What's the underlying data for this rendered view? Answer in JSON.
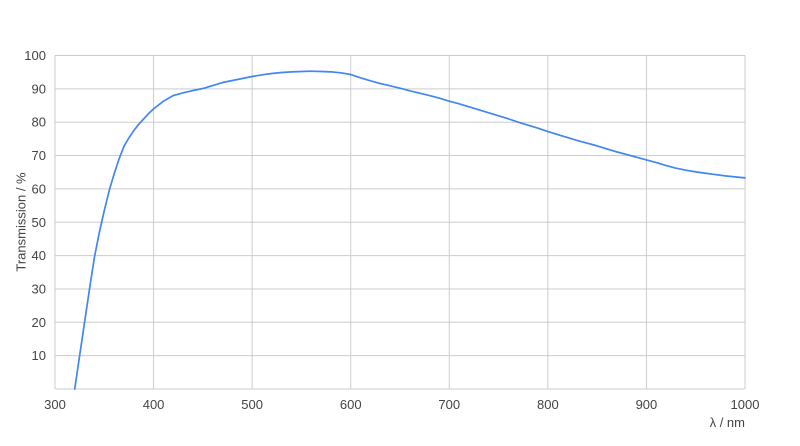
{
  "chart_data": {
    "type": "line",
    "title": "",
    "xlabel": "λ / nm",
    "ylabel": "Transmission / %",
    "xlim": [
      300,
      1000
    ],
    "ylim": [
      0,
      100
    ],
    "xticks": [
      300,
      400,
      500,
      600,
      700,
      800,
      900,
      1000
    ],
    "yticks": [
      10,
      20,
      30,
      40,
      50,
      60,
      70,
      80,
      90,
      100
    ],
    "grid": true,
    "legend": "none",
    "colors": {
      "line": "#4285f4",
      "grid": "#cccccc",
      "label": "#444444",
      "background": "#ffffff"
    },
    "series": [
      {
        "name": "Transmission",
        "x": [
          320,
          325,
          330,
          335,
          340,
          345,
          350,
          355,
          360,
          365,
          370,
          375,
          380,
          385,
          390,
          395,
          400,
          410,
          420,
          430,
          440,
          450,
          460,
          470,
          480,
          490,
          500,
          510,
          520,
          530,
          540,
          550,
          560,
          570,
          580,
          590,
          600,
          610,
          620,
          630,
          640,
          650,
          660,
          670,
          680,
          690,
          700,
          710,
          720,
          730,
          740,
          750,
          760,
          770,
          780,
          790,
          800,
          810,
          820,
          830,
          840,
          850,
          860,
          870,
          880,
          890,
          900,
          910,
          920,
          930,
          940,
          950,
          960,
          970,
          980,
          990,
          1000
        ],
        "y": [
          0,
          10,
          20,
          30,
          39.5,
          47,
          53.5,
          59.5,
          64.5,
          69,
          72.8,
          75.3,
          77.5,
          79.4,
          81,
          82.6,
          84,
          86.3,
          88,
          88.8,
          89.5,
          90.1,
          91,
          91.9,
          92.5,
          93.1,
          93.7,
          94.2,
          94.6,
          94.9,
          95.1,
          95.2,
          95.3,
          95.2,
          95.1,
          94.8,
          94.3,
          93.3,
          92.4,
          91.6,
          90.9,
          90.2,
          89.4,
          88.7,
          88.0,
          87.2,
          86.3,
          85.5,
          84.6,
          83.7,
          82.8,
          81.9,
          81.0,
          80.0,
          79.1,
          78.2,
          77.2,
          76.3,
          75.4,
          74.5,
          73.7,
          72.9,
          72.0,
          71.1,
          70.3,
          69.5,
          68.7,
          67.9,
          67.0,
          66.2,
          65.6,
          65.1,
          64.7,
          64.3,
          63.9,
          63.6,
          63.3
        ]
      }
    ]
  }
}
